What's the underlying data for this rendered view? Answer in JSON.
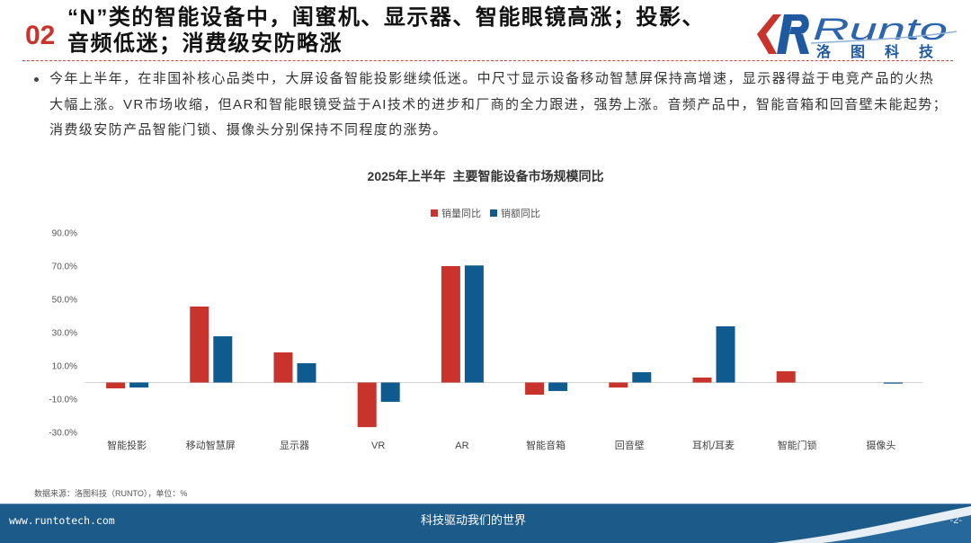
{
  "slide": {
    "section_number": "02",
    "title_lines": [
      "“N”类的智能设备中，闺蜜机、显示器、智能眼镜高涨；投影、",
      "音频低迷；消费级安防略涨"
    ],
    "bullet_lines": [
      "今年上半年，在非国补核心品类中，大屏设备智能投影继续低迷。中尺寸显示设备移动智慧屏保持高增速，显示器得益于电竞产品的火热",
      "大幅上涨。VR市场收缩，但AR和智能眼镜受益于AI技术的进步和厂商的全力跟进，强势上涨。音频产品中，智能音箱和回音壁未能起势；",
      "消费级安防产品智能门锁、摄像头分别保持不同程度的涨势。"
    ],
    "source_note": "数据来源：洛图科技（RUNTO），单位：%"
  },
  "logo": {
    "wordmark": "Runto",
    "name_cn": "洛图科技"
  },
  "footer": {
    "website": "www.runtotech.com",
    "slogan": "科技驱动我们的世界",
    "page": "-2-"
  },
  "colors": {
    "accent_red": "#c8342b",
    "brand_blue": "#1f5aa0",
    "footer_blue": "#1c5a8a"
  },
  "chart_data": {
    "type": "bar",
    "title": "2025年上半年  主要智能设备市场规模同比",
    "categories": [
      "智能投影",
      "移动智慧屏",
      "显示器",
      "VR",
      "AR",
      "智能音箱",
      "回音壁",
      "耳机/耳麦",
      "智能门锁",
      "摄像头"
    ],
    "series": [
      {
        "name": "销量同比",
        "color": "#c8342b",
        "values": [
          -3.5,
          45.7,
          18.1,
          -26.8,
          70.0,
          -7.3,
          -3.0,
          3.0,
          6.8,
          null
        ]
      },
      {
        "name": "销额同比",
        "color": "#0f5a8e",
        "values": [
          -3.0,
          27.8,
          11.6,
          -11.6,
          70.4,
          -5.1,
          6.2,
          33.8,
          null,
          -0.6
        ]
      }
    ],
    "ylim": [
      -30,
      90
    ],
    "yticks": [
      90,
      70,
      50,
      30,
      10,
      -10,
      -30
    ],
    "ytick_labels": [
      "90.0%",
      "70.0%",
      "50.0%",
      "30.0%",
      "10.0%",
      "-10.0%",
      "-30.0%"
    ],
    "legend_position": "top-center",
    "grid": false
  }
}
